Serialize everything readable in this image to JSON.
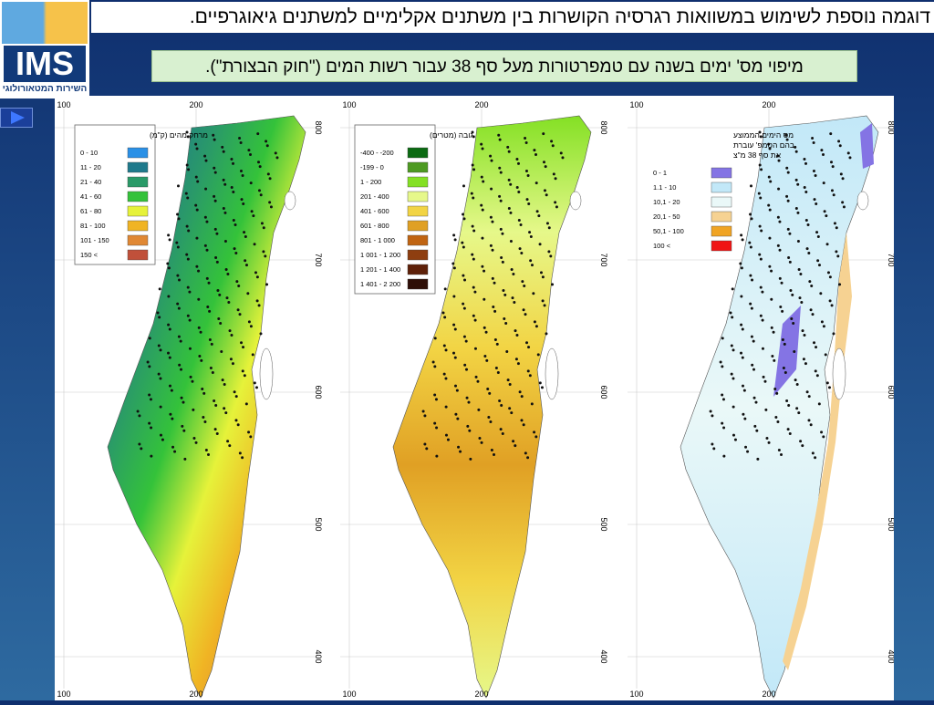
{
  "header": {
    "title": "דוגמה נוספת לשימוש במשוואות רגרסיה הקושרות בין משתנים אקלימיים למשתנים גיאוגרפיים.",
    "logo": "IMS",
    "logo_caption": "השירות המטאורולוגי"
  },
  "subtitle": "מיפוי מס' ימים בשנה עם טמפרטורות מעל סף 38 עבור רשות המים (\"חוק הבצורת\").",
  "maps": [
    {
      "legend_title": [
        "מרחק מהים (ק\"מ)"
      ],
      "legend": [
        {
          "label": "0 - 10",
          "color": "#2a90e6"
        },
        {
          "label": "11 - 20",
          "color": "#1f7a8c"
        },
        {
          "label": "21 - 40",
          "color": "#2a9a68"
        },
        {
          "label": "41 - 60",
          "color": "#34c23a"
        },
        {
          "label": "61 - 80",
          "color": "#e6f23a"
        },
        {
          "label": "81 - 100",
          "color": "#f0b424"
        },
        {
          "label": "101 - 150",
          "color": "#e08834"
        },
        {
          "label": "150 <",
          "color": "#c0503a"
        }
      ],
      "x_ticks": [
        100,
        200
      ],
      "y_ticks": [
        800,
        700,
        600,
        500,
        400
      ]
    },
    {
      "legend_title": [
        "גובה (מטרים)"
      ],
      "legend": [
        {
          "label": "-400 - -200",
          "color": "#0b6a12"
        },
        {
          "label": "-199 - 0",
          "color": "#4d9a22"
        },
        {
          "label": "1 - 200",
          "color": "#84e024"
        },
        {
          "label": "201 - 400",
          "color": "#e6f88a"
        },
        {
          "label": "401 - 600",
          "color": "#f2d444"
        },
        {
          "label": "601 - 800",
          "color": "#e0a024"
        },
        {
          "label": "801 - 1 000",
          "color": "#c06412"
        },
        {
          "label": "1 001 - 1 200",
          "color": "#8e3e10"
        },
        {
          "label": "1 201 - 1 400",
          "color": "#5e2008"
        },
        {
          "label": "1 401 - 2 200",
          "color": "#2e0e06"
        }
      ],
      "x_ticks": [
        100,
        200
      ],
      "y_ticks": [
        800,
        700,
        600,
        500,
        400
      ]
    },
    {
      "legend_title": [
        "מס הימים הממוצע",
        "בהם הטמפ' עוברת",
        "את סף 38 מ\"צ"
      ],
      "legend": [
        {
          "label": "0 - 1",
          "color": "#8474e4"
        },
        {
          "label": "1.1 - 10",
          "color": "#c2e8f8"
        },
        {
          "label": "10,1 - 20",
          "color": "#eaf8f8"
        },
        {
          "label": "20,1 - 50",
          "color": "#f6d292"
        },
        {
          "label": "50,1 - 100",
          "color": "#f0a424"
        },
        {
          "label": "100 <",
          "color": "#f01414"
        }
      ],
      "x_ticks": [
        100,
        200
      ],
      "y_ticks": [
        800,
        700,
        600,
        500,
        400
      ]
    }
  ]
}
